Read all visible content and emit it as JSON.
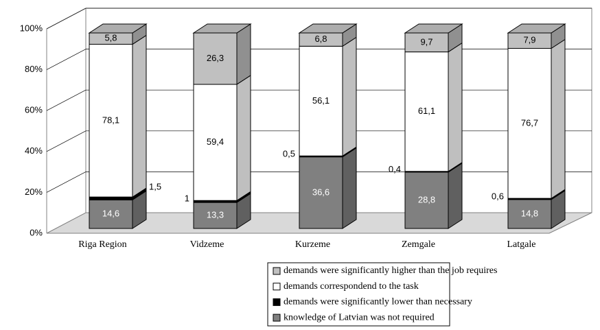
{
  "chart_data": {
    "type": "stacked_bar_3d",
    "categories": [
      "Riga Region",
      "Vidzeme",
      "Kurzeme",
      "Zemgale",
      "Latgale"
    ],
    "series": [
      {
        "name": "knowledge of Latvian was not required",
        "color": "#808080",
        "values": [
          14.6,
          13.3,
          36.6,
          28.8,
          14.8
        ],
        "value_labels": [
          "14,6",
          "13,3",
          "36,6",
          "28,8",
          "14,8"
        ]
      },
      {
        "name": "demands were significantly lower than necessary",
        "color": "#000000",
        "values": [
          1.5,
          1,
          0.5,
          0.4,
          0.6
        ],
        "value_labels": [
          "1,5",
          "1",
          "0,5",
          "0,4",
          "0,6"
        ]
      },
      {
        "name": "demands correspondend to the task",
        "color": "#ffffff",
        "values": [
          78.1,
          59.4,
          56.1,
          61.1,
          76.7
        ],
        "value_labels": [
          "78,1",
          "59,4",
          "56,1",
          "61,1",
          "76,7"
        ]
      },
      {
        "name": "demands were significantly higher than the job requires",
        "color": "#c0c0c0",
        "values": [
          5.8,
          26.3,
          6.8,
          9.7,
          7.9
        ],
        "value_labels": [
          "5,8",
          "26,3",
          "6,8",
          "9,7",
          "7,9"
        ]
      }
    ],
    "ylim": [
      0,
      100
    ],
    "yticks": [
      {
        "value": 0,
        "label": "0%"
      },
      {
        "value": 20,
        "label": "20%"
      },
      {
        "value": 40,
        "label": "40%"
      },
      {
        "value": 60,
        "label": "60%"
      },
      {
        "value": 80,
        "label": "80%"
      },
      {
        "value": 100,
        "label": "100%"
      }
    ],
    "grid": true,
    "legend": "bottom"
  }
}
